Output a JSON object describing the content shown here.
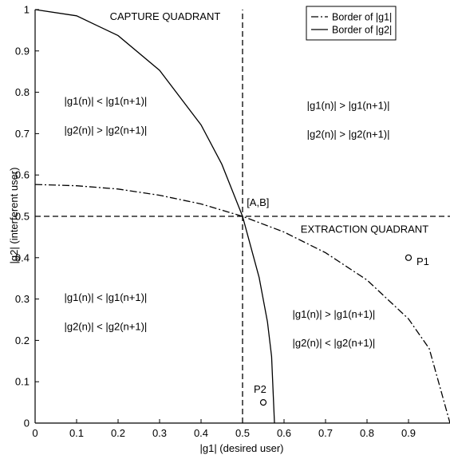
{
  "chart_data": {
    "type": "line",
    "title": "",
    "xlabel": "|g1| (desired user)",
    "ylabel": "|g2| (interferent user)",
    "xlim": [
      0,
      1
    ],
    "ylim": [
      0,
      1
    ],
    "xticks": [
      0,
      0.1,
      0.2,
      0.3,
      0.4,
      0.5,
      0.6,
      0.7,
      0.8,
      0.9
    ],
    "yticks": [
      0,
      0.1,
      0.2,
      0.3,
      0.4,
      0.5,
      0.6,
      0.7,
      0.8,
      0.9,
      1
    ],
    "xtick_labels": [
      "0",
      "0.1",
      "0.2",
      "0.3",
      "0.4",
      "0.5",
      "0.6",
      "0.7",
      "0.8",
      "0.9"
    ],
    "ytick_labels": [
      "0",
      "0.1",
      "0.2",
      "0.3",
      "0.4",
      "0.5",
      "0.6",
      "0.7",
      "0.8",
      "0.9",
      "1"
    ],
    "grid": false,
    "legend": {
      "position": "top-right",
      "entries": [
        {
          "label": "Border of |g1|",
          "style": "dash-dot"
        },
        {
          "label": "Border of |g2|",
          "style": "solid"
        }
      ]
    },
    "series": [
      {
        "name": "Border of |g1|",
        "style": "dash-dot",
        "x": [
          0,
          0.1,
          0.2,
          0.3,
          0.4,
          0.5,
          0.6,
          0.7,
          0.8,
          0.9,
          0.95,
          1.0
        ],
        "y": [
          0.577,
          0.574,
          0.566,
          0.551,
          0.53,
          0.5,
          0.462,
          0.412,
          0.346,
          0.252,
          0.18,
          0.0
        ]
      },
      {
        "name": "Border of |g2|",
        "style": "solid",
        "x": [
          0,
          0.1,
          0.2,
          0.3,
          0.4,
          0.45,
          0.5,
          0.54,
          0.56,
          0.57,
          0.577
        ],
        "y": [
          1.0,
          0.985,
          0.937,
          0.853,
          0.721,
          0.626,
          0.5,
          0.352,
          0.245,
          0.161,
          0.0
        ]
      },
      {
        "name": "",
        "style": "dashed",
        "x": [
          0.5,
          0.5
        ],
        "y": [
          0,
          1
        ]
      },
      {
        "name": "",
        "style": "dashed",
        "x": [
          0,
          1
        ],
        "y": [
          0.5,
          0.5
        ]
      }
    ],
    "points": [
      {
        "label": "P1",
        "x": 0.9,
        "y": 0.4
      },
      {
        "label": "P2",
        "x": 0.55,
        "y": 0.05
      }
    ],
    "annotations": [
      {
        "text": "CAPTURE QUADRANT",
        "x": 0.18,
        "y": 0.975
      },
      {
        "text": "EXTRACTION QUADRANT",
        "x": 0.64,
        "y": 0.46
      },
      {
        "text": "[A,B]",
        "x": 0.51,
        "y": 0.525
      },
      {
        "text": "|g1(n)| < |g1(n+1)|",
        "x": 0.17,
        "y": 0.77
      },
      {
        "text": "|g2(n)| > |g2(n+1)|",
        "x": 0.17,
        "y": 0.7
      },
      {
        "text": "|g1(n)| > |g1(n+1)|",
        "x": 0.755,
        "y": 0.76
      },
      {
        "text": "|g2(n)| > |g2(n+1)|",
        "x": 0.755,
        "y": 0.69
      },
      {
        "text": "|g1(n)| < |g1(n+1)|",
        "x": 0.17,
        "y": 0.295
      },
      {
        "text": "|g2(n)| < |g2(n+1)|",
        "x": 0.17,
        "y": 0.225
      },
      {
        "text": "|g1(n)| > |g1(n+1)|",
        "x": 0.72,
        "y": 0.255
      },
      {
        "text": "|g2(n)| < |g2(n+1)|",
        "x": 0.72,
        "y": 0.185
      }
    ]
  }
}
